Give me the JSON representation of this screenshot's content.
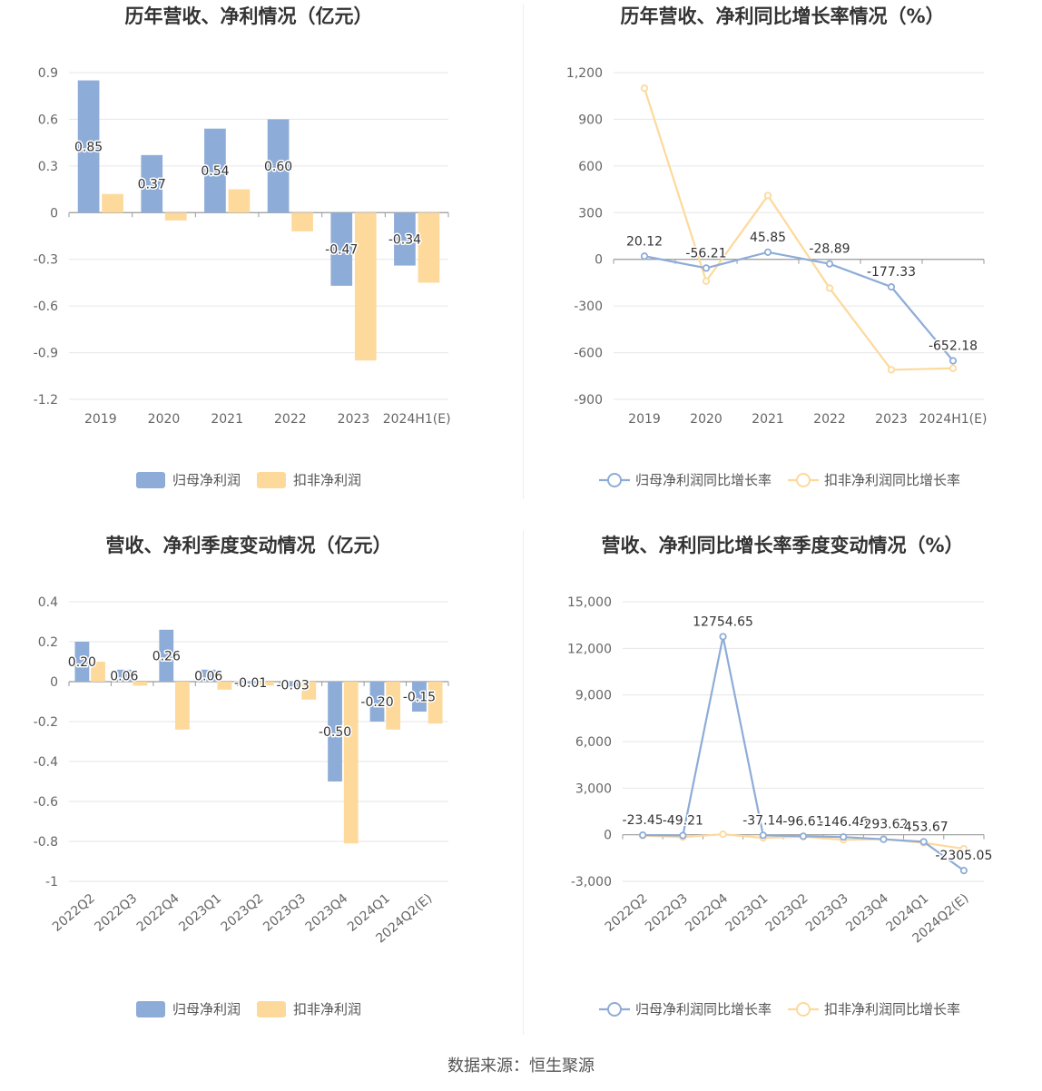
{
  "source": "数据来源：恒生聚源",
  "chart_data": [
    {
      "id": "c1",
      "type": "bar",
      "title": "历年营收、净利情况（亿元）",
      "categories": [
        "2019",
        "2020",
        "2021",
        "2022",
        "2023",
        "2024H1(E)"
      ],
      "yticks": [
        "0.9",
        "0.6",
        "0.3",
        "0",
        "-0.3",
        "-0.6",
        "-0.9",
        "-1.2"
      ],
      "ylim": [
        -1.2,
        0.9
      ],
      "grid": true,
      "legend_position": "bottom",
      "series": [
        {
          "name": "归母净利润",
          "color": "#8eacd8",
          "values": [
            0.85,
            0.37,
            0.54,
            0.6,
            -0.47,
            -0.34
          ],
          "labels": [
            "0.85",
            "0.37",
            "0.54",
            "0.60",
            "-0.47",
            "-0.34"
          ]
        },
        {
          "name": "扣非净利润",
          "color": "#fdd99b",
          "values": [
            0.12,
            -0.05,
            0.15,
            -0.12,
            -0.95,
            -0.45
          ],
          "labels": []
        }
      ]
    },
    {
      "id": "c2",
      "type": "line",
      "title": "历年营收、净利同比增长率情况（%）",
      "categories": [
        "2019",
        "2020",
        "2021",
        "2022",
        "2023",
        "2024H1(E)"
      ],
      "yticks": [
        "1,200",
        "900",
        "600",
        "300",
        "0",
        "-300",
        "-600",
        "-900"
      ],
      "ylim": [
        -900,
        1200
      ],
      "grid": true,
      "legend_position": "bottom",
      "series": [
        {
          "name": "归母净利润同比增长率",
          "color": "#8eacd8",
          "values": [
            20.12,
            -56.21,
            45.85,
            -28.89,
            -177.33,
            -652.18
          ],
          "labels": [
            "20.12",
            "-56.21",
            "45.85",
            "-28.89",
            "-177.33",
            "-652.18"
          ]
        },
        {
          "name": "扣非净利润同比增长率",
          "color": "#fdd99b",
          "values": [
            1100,
            -140,
            410,
            -185,
            -710,
            -700
          ],
          "labels": []
        }
      ]
    },
    {
      "id": "c3",
      "type": "bar",
      "title": "营收、净利季度变动情况（亿元）",
      "categories": [
        "2022Q2",
        "2022Q3",
        "2022Q4",
        "2023Q1",
        "2023Q2",
        "2023Q3",
        "2023Q4",
        "2024Q1",
        "2024Q2(E)"
      ],
      "yticks": [
        "0.4",
        "0.2",
        "0",
        "-0.2",
        "-0.4",
        "-0.6",
        "-0.8",
        "-1"
      ],
      "ylim": [
        -1.0,
        0.4
      ],
      "grid": true,
      "legend_position": "bottom",
      "series": [
        {
          "name": "归母净利润",
          "color": "#8eacd8",
          "values": [
            0.2,
            0.06,
            0.26,
            0.06,
            -0.01,
            -0.03,
            -0.5,
            -0.2,
            -0.15
          ],
          "labels": [
            "0.20",
            "0.06",
            "0.26",
            "0.06",
            "-0.01",
            "-0.03",
            "-0.50",
            "-0.20",
            "-0.15"
          ]
        },
        {
          "name": "扣非净利润",
          "color": "#fdd99b",
          "values": [
            0.1,
            -0.02,
            -0.24,
            -0.04,
            -0.02,
            -0.09,
            -0.81,
            -0.24,
            -0.21
          ],
          "labels": []
        }
      ]
    },
    {
      "id": "c4",
      "type": "line",
      "title": "营收、净利同比增长率季度变动情况（%）",
      "categories": [
        "2022Q2",
        "2022Q3",
        "2022Q4",
        "2023Q1",
        "2023Q2",
        "2023Q3",
        "2023Q4",
        "2024Q1",
        "2024Q2(E)"
      ],
      "yticks": [
        "15,000",
        "12,000",
        "9,000",
        "6,000",
        "3,000",
        "0",
        "-3,000"
      ],
      "ylim": [
        -3000,
        15000
      ],
      "grid": true,
      "legend_position": "bottom",
      "series": [
        {
          "name": "归母净利润同比增长率",
          "color": "#8eacd8",
          "values": [
            -23.45,
            -49.21,
            12754.65,
            -37.14,
            -96.61,
            -146.46,
            -293.62,
            -453.67,
            -2305.05
          ],
          "labels": [
            "-23.45",
            "-49.21",
            "12754.65",
            "-37.14",
            "-96.61",
            "-146.46",
            "-293.62",
            "-453.67",
            "-2305.05"
          ]
        },
        {
          "name": "扣非净利润同比增长率",
          "color": "#fdd99b",
          "values": [
            -60,
            -150,
            30,
            -200,
            -120,
            -330,
            -280,
            -520,
            -900
          ],
          "labels": []
        }
      ]
    }
  ]
}
